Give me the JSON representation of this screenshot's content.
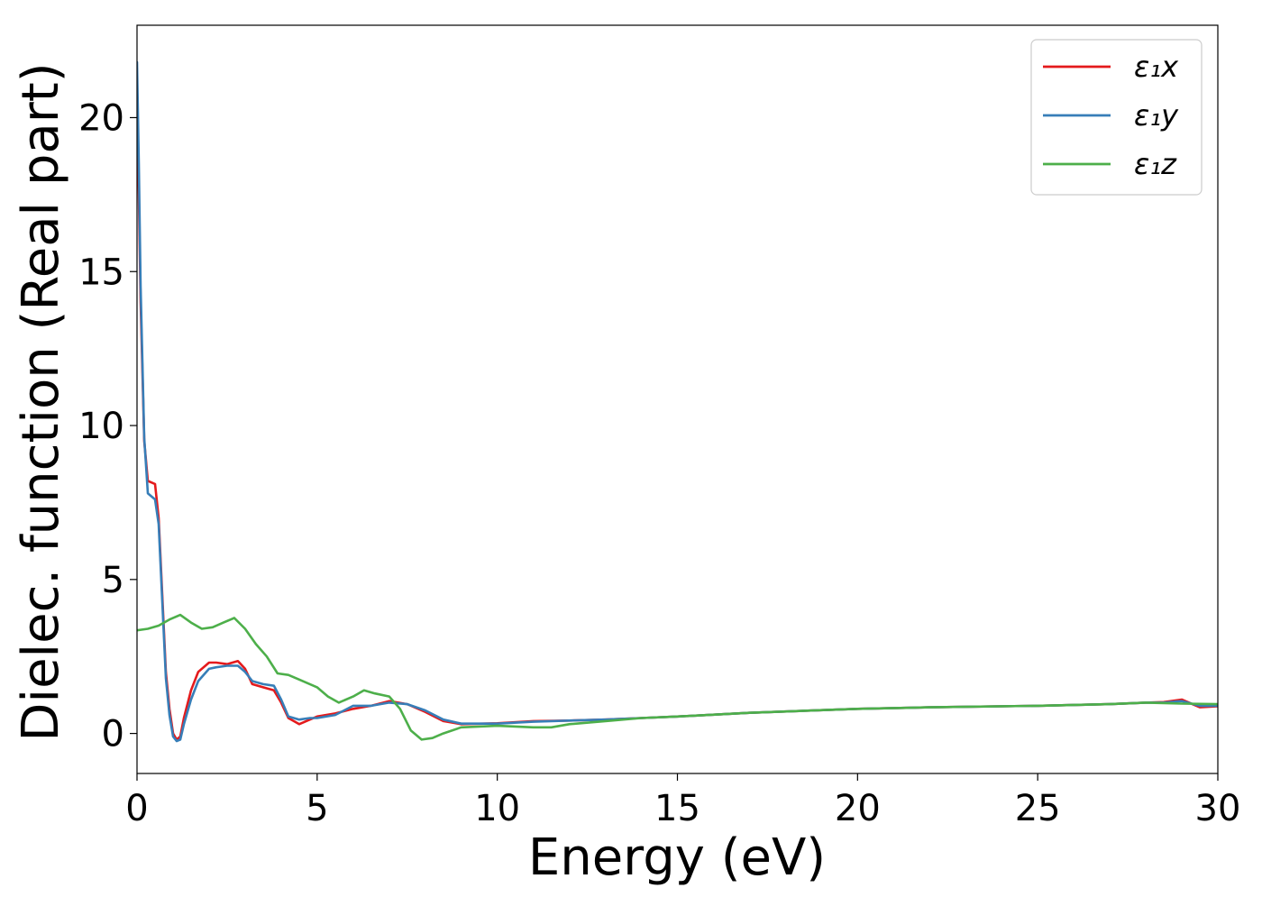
{
  "chart_data": {
    "type": "line",
    "xlabel": "Energy (eV)",
    "ylabel": "Dielec. function (Real part)",
    "xlim": [
      0,
      30
    ],
    "ylim": [
      -1.3,
      23
    ],
    "xticks": [
      0,
      5,
      10,
      15,
      20,
      25,
      30
    ],
    "yticks": [
      0,
      5,
      10,
      15,
      20
    ],
    "grid": false,
    "legend_position": "top-right",
    "series": [
      {
        "name": "ε₁x",
        "color": "#e41a1c",
        "x": [
          0,
          0.05,
          0.1,
          0.2,
          0.3,
          0.4,
          0.5,
          0.6,
          0.7,
          0.8,
          0.9,
          1.0,
          1.1,
          1.2,
          1.3,
          1.5,
          1.7,
          2.0,
          2.2,
          2.5,
          2.8,
          3.0,
          3.2,
          3.5,
          3.8,
          4.0,
          4.2,
          4.5,
          4.8,
          5.0,
          5.5,
          6.0,
          6.5,
          7.0,
          7.5,
          8.0,
          8.5,
          9.0,
          10,
          11,
          12,
          13,
          14,
          15,
          17,
          20,
          22,
          25,
          27,
          28,
          28.5,
          29.0,
          29.5,
          30
        ],
        "values": [
          20.5,
          17.5,
          14.0,
          9.5,
          8.2,
          8.15,
          8.1,
          7.0,
          4.5,
          2.0,
          0.8,
          0.0,
          -0.2,
          -0.1,
          0.5,
          1.4,
          2.0,
          2.3,
          2.3,
          2.25,
          2.35,
          2.1,
          1.6,
          1.5,
          1.4,
          1.0,
          0.5,
          0.3,
          0.45,
          0.55,
          0.65,
          0.8,
          0.9,
          1.05,
          0.95,
          0.7,
          0.4,
          0.3,
          0.33,
          0.4,
          0.42,
          0.45,
          0.5,
          0.55,
          0.67,
          0.8,
          0.85,
          0.9,
          0.95,
          1.0,
          1.02,
          1.1,
          0.85,
          0.88
        ]
      },
      {
        "name": "ε₁y",
        "color": "#377eb8",
        "x": [
          0,
          0.05,
          0.1,
          0.2,
          0.3,
          0.4,
          0.5,
          0.6,
          0.7,
          0.8,
          0.9,
          1.0,
          1.1,
          1.2,
          1.3,
          1.5,
          1.7,
          2.0,
          2.2,
          2.5,
          2.8,
          3.0,
          3.2,
          3.5,
          3.8,
          4.0,
          4.2,
          4.5,
          4.8,
          5.0,
          5.5,
          6.0,
          6.5,
          7.0,
          7.5,
          8.0,
          8.5,
          9.0,
          10,
          11,
          12,
          13,
          14,
          15,
          17,
          20,
          22,
          25,
          27,
          28,
          28.5,
          29.0,
          29.5,
          30
        ],
        "values": [
          21.8,
          18.5,
          14.5,
          9.6,
          7.8,
          7.7,
          7.6,
          6.8,
          4.3,
          1.8,
          0.6,
          -0.1,
          -0.25,
          -0.2,
          0.3,
          1.1,
          1.7,
          2.1,
          2.15,
          2.2,
          2.2,
          2.0,
          1.7,
          1.6,
          1.55,
          1.1,
          0.55,
          0.45,
          0.5,
          0.5,
          0.6,
          0.9,
          0.9,
          1.0,
          0.95,
          0.75,
          0.45,
          0.32,
          0.32,
          0.38,
          0.42,
          0.45,
          0.5,
          0.55,
          0.67,
          0.8,
          0.85,
          0.9,
          0.95,
          1.0,
          1.0,
          1.05,
          0.9,
          0.9
        ]
      },
      {
        "name": "ε₁z",
        "color": "#4daf4a",
        "x": [
          0,
          0.3,
          0.6,
          0.9,
          1.2,
          1.5,
          1.8,
          2.1,
          2.4,
          2.7,
          3.0,
          3.3,
          3.6,
          3.9,
          4.2,
          4.5,
          5.0,
          5.3,
          5.6,
          6.0,
          6.3,
          6.6,
          7.0,
          7.3,
          7.6,
          7.9,
          8.2,
          8.5,
          9.0,
          10,
          11,
          11.5,
          12,
          13,
          14,
          15,
          17,
          20,
          22,
          25,
          27,
          28,
          29.0,
          30
        ],
        "values": [
          3.35,
          3.4,
          3.5,
          3.7,
          3.85,
          3.6,
          3.4,
          3.45,
          3.6,
          3.75,
          3.4,
          2.9,
          2.5,
          1.95,
          1.9,
          1.75,
          1.5,
          1.2,
          1.0,
          1.2,
          1.4,
          1.3,
          1.2,
          0.8,
          0.1,
          -0.2,
          -0.15,
          0.0,
          0.2,
          0.25,
          0.2,
          0.2,
          0.3,
          0.4,
          0.5,
          0.55,
          0.67,
          0.8,
          0.85,
          0.9,
          0.95,
          1.0,
          0.97,
          0.95
        ]
      }
    ]
  }
}
